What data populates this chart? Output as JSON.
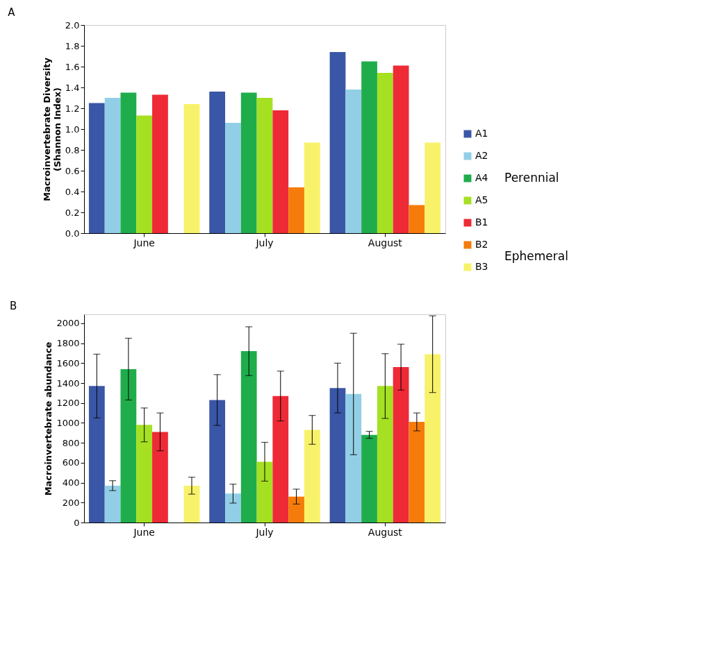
{
  "chart_data": [
    {
      "type": "bar",
      "title": "A",
      "ylabel": "Macroinvertebrate Diversity\n(Shannon Index)",
      "categories": [
        "June",
        "July",
        "August"
      ],
      "series": [
        {
          "name": "A1",
          "color": "#3a56a6",
          "values": [
            1.25,
            1.36,
            1.74
          ]
        },
        {
          "name": "A2",
          "color": "#92cfe6",
          "values": [
            1.3,
            1.06,
            1.38
          ]
        },
        {
          "name": "A4",
          "color": "#1fad4c",
          "values": [
            1.35,
            1.35,
            1.65
          ]
        },
        {
          "name": "A5",
          "color": "#a6e022",
          "values": [
            1.13,
            1.3,
            1.54
          ]
        },
        {
          "name": "B1",
          "color": "#ee2a36",
          "values": [
            1.33,
            1.18,
            1.61
          ]
        },
        {
          "name": "B2",
          "color": "#f57c0a",
          "values": [
            null,
            0.44,
            0.27
          ]
        },
        {
          "name": "B3",
          "color": "#f7f26a",
          "values": [
            1.24,
            0.87,
            0.87
          ]
        }
      ],
      "ylim": [
        0,
        2.0
      ],
      "yticks": [
        {
          "value": 0,
          "label": "0.0"
        },
        {
          "value": 0.2,
          "label": "0.2"
        },
        {
          "value": 0.4,
          "label": "0.4"
        },
        {
          "value": 0.6,
          "label": "0.6"
        },
        {
          "value": 0.8,
          "label": "0.8"
        },
        {
          "value": 1.0,
          "label": "1.0"
        },
        {
          "value": 1.2,
          "label": "1.2"
        },
        {
          "value": 1.4,
          "label": "1.4"
        },
        {
          "value": 1.6,
          "label": "1.6"
        },
        {
          "value": 1.8,
          "label": "1.8"
        },
        {
          "value": 2.0,
          "label": "2.0"
        }
      ],
      "grid": false,
      "legend": "right",
      "annotations": [
        "Perennial",
        "Ephemeral"
      ]
    },
    {
      "type": "bar",
      "title": "B",
      "ylabel": "Macroinvertebrate abundance",
      "categories": [
        "June",
        "July",
        "August"
      ],
      "series": [
        {
          "name": "A1",
          "color": "#3a56a6",
          "values": [
            1370,
            1230,
            1350
          ],
          "errors": [
            320,
            255,
            250
          ]
        },
        {
          "name": "A2",
          "color": "#92cfe6",
          "values": [
            370,
            290,
            1290
          ],
          "errors": [
            50,
            95,
            610
          ]
        },
        {
          "name": "A4",
          "color": "#1fad4c",
          "values": [
            1540,
            1720,
            880
          ],
          "errors": [
            310,
            245,
            35
          ]
        },
        {
          "name": "A5",
          "color": "#a6e022",
          "values": [
            980,
            610,
            1370
          ],
          "errors": [
            170,
            195,
            325
          ]
        },
        {
          "name": "B1",
          "color": "#ee2a36",
          "values": [
            910,
            1270,
            1560
          ],
          "errors": [
            190,
            250,
            230
          ]
        },
        {
          "name": "B2",
          "color": "#f57c0a",
          "values": [
            null,
            260,
            1010
          ],
          "errors": [
            null,
            75,
            90
          ]
        },
        {
          "name": "B3",
          "color": "#f7f26a",
          "values": [
            370,
            930,
            1690
          ],
          "errors": [
            85,
            145,
            385
          ]
        }
      ],
      "ylim": [
        0,
        2090
      ],
      "yticks": [
        0,
        200,
        400,
        600,
        800,
        1000,
        1200,
        1400,
        1600,
        1800,
        2000
      ],
      "grid": false,
      "legend": false
    }
  ]
}
